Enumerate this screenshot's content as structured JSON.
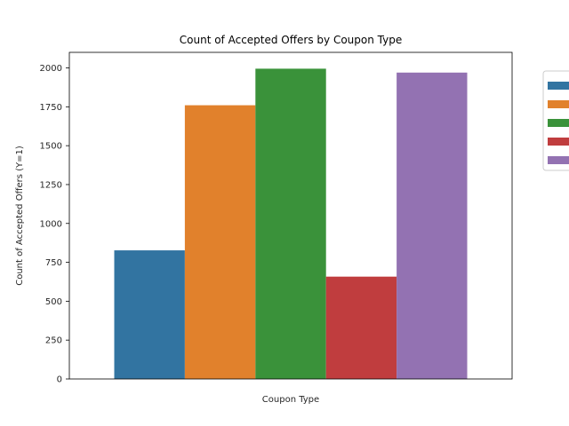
{
  "chart_data": {
    "type": "bar",
    "title": "Count of Accepted Offers by Coupon Type",
    "xlabel": "Coupon Type",
    "ylabel": "Count of Accepted Offers (Y=1)",
    "ylim": [
      0,
      2100
    ],
    "yticks": [
      0,
      250,
      500,
      750,
      1000,
      1250,
      1500,
      1750,
      2000
    ],
    "grid": false,
    "legend": {
      "placement": "outside-right",
      "entries_text_visible": false
    },
    "series": [
      {
        "values": [
          827
        ],
        "color": "#3274a1"
      },
      {
        "values": [
          1760
        ],
        "color": "#e1812c"
      },
      {
        "values": [
          1995
        ],
        "color": "#3a923a"
      },
      {
        "values": [
          658
        ],
        "color": "#c03d3e"
      },
      {
        "values": [
          1970
        ],
        "color": "#9372b2"
      }
    ]
  }
}
